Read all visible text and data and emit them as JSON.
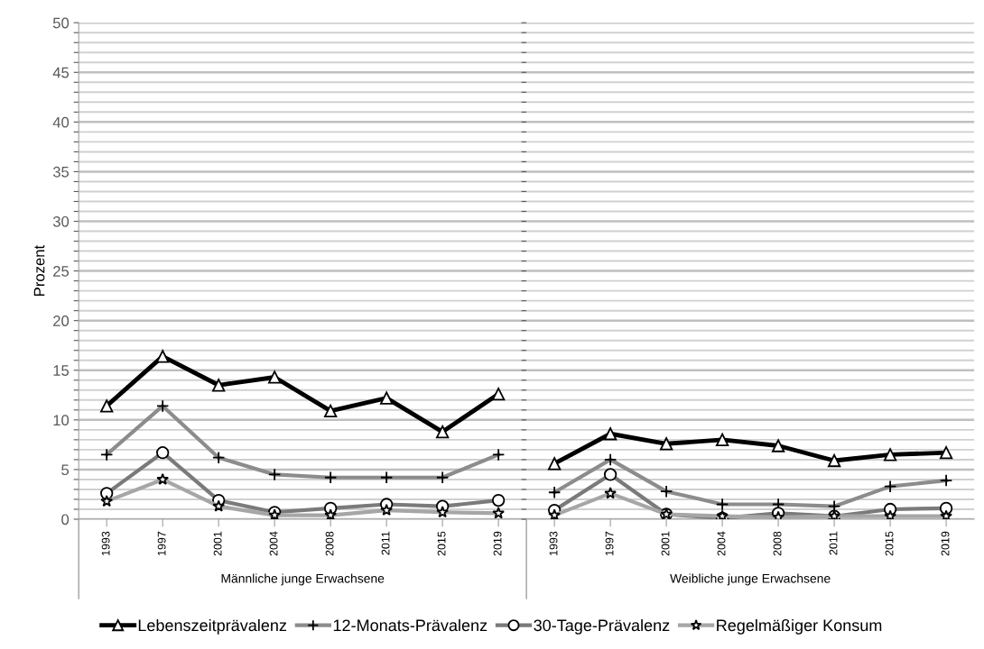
{
  "chart_data": [
    {
      "type": "line",
      "ylabel": "Prozent",
      "xlabel": "Männliche junge Erwachsene",
      "categories": [
        "1993",
        "1997",
        "2001",
        "2004",
        "2008",
        "2011",
        "2015",
        "2019"
      ],
      "ylim": [
        0,
        50
      ],
      "yticks": [
        0,
        {
          "value": 1,
          "label": null
        },
        {
          "value": 2,
          "label": null
        },
        {
          "value": 3,
          "label": null
        },
        {
          "value": 4,
          "label": null
        },
        5,
        {
          "value": 6,
          "label": null
        },
        {
          "value": 7,
          "label": null
        },
        {
          "value": 8,
          "label": null
        },
        {
          "value": 9,
          "label": null
        },
        10,
        {
          "value": 11,
          "label": null
        },
        {
          "value": 12,
          "label": null
        },
        {
          "value": 13,
          "label": null
        },
        {
          "value": 14,
          "label": null
        },
        15,
        {
          "value": 16,
          "label": null
        },
        {
          "value": 17,
          "label": null
        },
        {
          "value": 18,
          "label": null
        },
        {
          "value": 19,
          "label": null
        },
        20,
        {
          "value": 21,
          "label": null
        },
        {
          "value": 22,
          "label": null
        },
        {
          "value": 23,
          "label": null
        },
        {
          "value": 24,
          "label": null
        },
        25,
        {
          "value": 26,
          "label": null
        },
        {
          "value": 27,
          "label": null
        },
        {
          "value": 28,
          "label": null
        },
        {
          "value": 29,
          "label": null
        },
        30,
        {
          "value": 31,
          "label": null
        },
        {
          "value": 32,
          "label": null
        },
        {
          "value": 33,
          "label": null
        },
        {
          "value": 34,
          "label": null
        },
        35,
        {
          "value": 36,
          "label": null
        },
        {
          "value": 37,
          "label": null
        },
        {
          "value": 38,
          "label": null
        },
        {
          "value": 39,
          "label": null
        },
        40,
        {
          "value": 41,
          "label": null
        },
        {
          "value": 42,
          "label": null
        },
        {
          "value": 43,
          "label": null
        },
        {
          "value": 44,
          "label": null
        },
        45,
        {
          "value": 46,
          "label": null
        },
        {
          "value": 47,
          "label": null
        },
        {
          "value": 48,
          "label": null
        },
        {
          "value": 49,
          "label": null
        },
        50
      ],
      "grid": "y",
      "legend": "bottom",
      "series": [
        {
          "name": "Lebenszeitprävalenz",
          "color": "#000000",
          "marker": "triangle",
          "values": [
            11.4,
            16.4,
            13.5,
            14.3,
            10.9,
            12.2,
            8.8,
            12.6
          ]
        },
        {
          "name": "12-Monats-Prävalenz",
          "color": "#8c8c8c",
          "marker": "cross",
          "values": [
            6.5,
            11.4,
            6.2,
            4.5,
            4.2,
            4.2,
            4.2,
            6.5
          ]
        },
        {
          "name": "30-Tage-Prävalenz",
          "color": "#7a7a7a",
          "marker": "circle",
          "values": [
            2.6,
            6.7,
            1.9,
            0.7,
            1.1,
            1.5,
            1.3,
            1.9
          ]
        },
        {
          "name": "Regelmäßiger Konsum",
          "color": "#a6a6a6",
          "marker": "star",
          "values": [
            1.8,
            4.0,
            1.3,
            0.4,
            0.4,
            0.9,
            0.7,
            0.6
          ]
        }
      ]
    },
    {
      "type": "line",
      "xlabel": "Weibliche junge Erwachsene",
      "categories": [
        "1993",
        "1997",
        "2001",
        "2004",
        "2008",
        "2011",
        "2015",
        "2019"
      ],
      "ylim": [
        0,
        50
      ],
      "yticks": [
        0,
        {
          "value": 1,
          "label": null
        },
        {
          "value": 2,
          "label": null
        },
        {
          "value": 3,
          "label": null
        },
        {
          "value": 4,
          "label": null
        },
        5,
        {
          "value": 6,
          "label": null
        },
        {
          "value": 7,
          "label": null
        },
        {
          "value": 8,
          "label": null
        },
        {
          "value": 9,
          "label": null
        },
        10,
        {
          "value": 11,
          "label": null
        },
        {
          "value": 12,
          "label": null
        },
        {
          "value": 13,
          "label": null
        },
        {
          "value": 14,
          "label": null
        },
        15,
        {
          "value": 16,
          "label": null
        },
        {
          "value": 17,
          "label": null
        },
        {
          "value": 18,
          "label": null
        },
        {
          "value": 19,
          "label": null
        },
        20,
        {
          "value": 21,
          "label": null
        },
        {
          "value": 22,
          "label": null
        },
        {
          "value": 23,
          "label": null
        },
        {
          "value": 24,
          "label": null
        },
        25,
        {
          "value": 26,
          "label": null
        },
        {
          "value": 27,
          "label": null
        },
        {
          "value": 28,
          "label": null
        },
        {
          "value": 29,
          "label": null
        },
        30,
        {
          "value": 31,
          "label": null
        },
        {
          "value": 32,
          "label": null
        },
        {
          "value": 33,
          "label": null
        },
        {
          "value": 34,
          "label": null
        },
        35,
        {
          "value": 36,
          "label": null
        },
        {
          "value": 37,
          "label": null
        },
        {
          "value": 38,
          "label": null
        },
        {
          "value": 39,
          "label": null
        },
        40,
        {
          "value": 41,
          "label": null
        },
        {
          "value": 42,
          "label": null
        },
        {
          "value": 43,
          "label": null
        },
        {
          "value": 44,
          "label": null
        },
        45,
        {
          "value": 46,
          "label": null
        },
        {
          "value": 47,
          "label": null
        },
        {
          "value": 48,
          "label": null
        },
        {
          "value": 49,
          "label": null
        },
        50
      ],
      "grid": "y",
      "tick_labels": "x",
      "series": [
        {
          "color": "#000000",
          "marker": "triangle",
          "values": [
            5.6,
            8.6,
            7.6,
            8.0,
            7.4,
            5.9,
            6.5,
            6.7
          ]
        },
        {
          "color": "#8c8c8c",
          "marker": "cross",
          "values": [
            2.7,
            6.0,
            2.8,
            1.5,
            1.5,
            1.3,
            3.3,
            3.9
          ]
        },
        {
          "color": "#7a7a7a",
          "marker": "circle",
          "values": [
            0.9,
            4.5,
            0.5,
            0.1,
            0.6,
            0.3,
            1.0,
            1.1
          ]
        },
        {
          "color": "#a6a6a6",
          "marker": "star",
          "values": [
            0.4,
            2.6,
            0.5,
            0.3,
            0.2,
            0.3,
            0.3,
            0.3
          ]
        }
      ]
    }
  ]
}
